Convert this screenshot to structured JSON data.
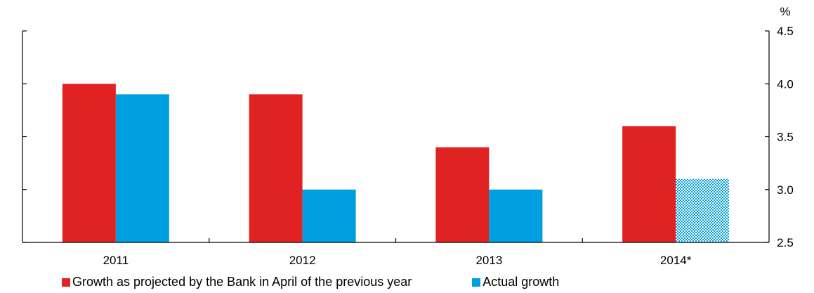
{
  "chart_data": {
    "type": "bar",
    "categories": [
      "2011",
      "2012",
      "2013",
      "2014*"
    ],
    "series": [
      {
        "name": "Growth as projected by the Bank in April of the previous year",
        "color": "#e12222",
        "values": [
          4.0,
          3.9,
          3.4,
          3.6
        ]
      },
      {
        "name": "Actual growth",
        "color": "#009fe0",
        "values": [
          3.9,
          3.0,
          3.0,
          3.1
        ],
        "estimated_last": true
      }
    ],
    "ylim": [
      2.5,
      4.5
    ],
    "yticks": [
      "2.5",
      "3.0",
      "3.5",
      "4.0",
      "4.5"
    ],
    "yunit": "%",
    "y_axis_side": "right",
    "grid": false,
    "legend_position": "bottom"
  }
}
